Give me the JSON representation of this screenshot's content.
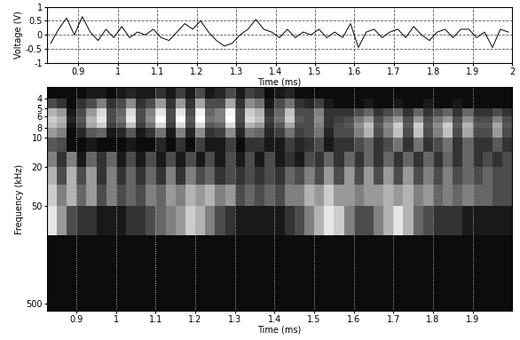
{
  "chart_data": [
    {
      "type": "line",
      "xlabel": "Time (ms)",
      "ylabel": "Voltage (V)",
      "color": "#000000",
      "grid": true,
      "xlim": [
        0.82,
        2
      ],
      "xticks": [
        0.9,
        1,
        1.1,
        1.2,
        1.3,
        1.4,
        1.5,
        1.6,
        1.7,
        1.8,
        1.9,
        2
      ],
      "ylim": [
        -1,
        1
      ],
      "yticks": [
        -1,
        -0.5,
        0,
        0.5,
        1
      ],
      "x": [
        0.83,
        0.85,
        0.87,
        0.89,
        0.91,
        0.93,
        0.95,
        0.97,
        0.99,
        1.01,
        1.03,
        1.05,
        1.07,
        1.09,
        1.11,
        1.13,
        1.15,
        1.17,
        1.19,
        1.21,
        1.23,
        1.25,
        1.27,
        1.29,
        1.31,
        1.33,
        1.35,
        1.37,
        1.39,
        1.41,
        1.43,
        1.45,
        1.47,
        1.49,
        1.51,
        1.53,
        1.55,
        1.57,
        1.59,
        1.61,
        1.63,
        1.65,
        1.67,
        1.69,
        1.71,
        1.73,
        1.75,
        1.77,
        1.79,
        1.81,
        1.83,
        1.85,
        1.87,
        1.89,
        1.91,
        1.93,
        1.95,
        1.97,
        1.99
      ],
      "values": [
        -0.3,
        0.2,
        0.6,
        0.0,
        0.65,
        0.1,
        -0.2,
        0.2,
        -0.1,
        0.3,
        -0.1,
        0.1,
        0.0,
        0.2,
        -0.1,
        -0.2,
        0.1,
        0.4,
        0.2,
        0.5,
        0.1,
        -0.2,
        -0.4,
        -0.3,
        0.0,
        0.2,
        0.55,
        0.2,
        0.1,
        -0.1,
        0.2,
        -0.1,
        0.1,
        0.0,
        0.2,
        -0.1,
        0.1,
        -0.1,
        0.4,
        -0.45,
        0.1,
        0.2,
        -0.1,
        0.1,
        0.2,
        -0.1,
        0.3,
        0.0,
        -0.2,
        0.1,
        0.2,
        -0.1,
        0.2,
        0.2,
        -0.1,
        0.1,
        -0.45,
        0.2,
        0.1
      ]
    },
    {
      "type": "heatmap",
      "xlabel": "Time (ms)",
      "ylabel": "Frequency (kHz)",
      "log": "y",
      "grid": true,
      "xlim": [
        0.825,
        2
      ],
      "xticks": [
        0.9,
        1,
        1.1,
        1.2,
        1.3,
        1.4,
        1.5,
        1.6,
        1.7,
        1.8,
        1.9
      ],
      "ylim": [
        600,
        3
      ],
      "yticks": [
        4,
        5,
        6,
        8,
        10,
        20,
        50,
        500
      ],
      "x": [
        0.825,
        0.85,
        0.875,
        0.9,
        0.925,
        0.95,
        0.975,
        1.0,
        1.025,
        1.05,
        1.075,
        1.1,
        1.125,
        1.15,
        1.175,
        1.2,
        1.225,
        1.25,
        1.275,
        1.3,
        1.325,
        1.35,
        1.375,
        1.4,
        1.425,
        1.45,
        1.475,
        1.5,
        1.525,
        1.55,
        1.575,
        1.6,
        1.625,
        1.65,
        1.675,
        1.7,
        1.725,
        1.75,
        1.775,
        1.8,
        1.825,
        1.85,
        1.875,
        1.9,
        1.925,
        1.95,
        1.975,
        2.0
      ],
      "y": [
        3,
        4,
        5,
        6,
        7,
        8,
        10,
        14,
        20,
        30,
        50,
        100,
        600
      ],
      "value_range": [
        0,
        1
      ],
      "cells": [
        [
          0.05,
          0.05,
          0.05,
          0.05,
          0.1,
          0.1,
          0.05,
          0.1,
          0.15,
          0.1,
          0.1,
          0.2,
          0.1,
          0.25,
          0.1,
          0.3,
          0.1,
          0.15,
          0.3,
          0.1,
          0.25,
          0.2,
          0.05,
          0.1,
          0.15,
          0.05,
          0.05,
          0.05,
          0.05,
          0.05,
          0.05,
          0.05,
          0.05,
          0.05,
          0.05,
          0.05,
          0.05,
          0.05,
          0.05,
          0.05,
          0.05,
          0.05,
          0.05,
          0.05,
          0.05,
          0.05,
          0.05
        ],
        [
          0.3,
          0.2,
          0.05,
          0.2,
          0.3,
          0.5,
          0.2,
          0.3,
          0.55,
          0.2,
          0.3,
          0.6,
          0.2,
          0.6,
          0.2,
          0.65,
          0.3,
          0.3,
          0.65,
          0.2,
          0.55,
          0.45,
          0.1,
          0.3,
          0.45,
          0.2,
          0.15,
          0.25,
          0.1,
          0.05,
          0.05,
          0.05,
          0.1,
          0.05,
          0.05,
          0.1,
          0.05,
          0.05,
          0.1,
          0.05,
          0.05,
          0.1,
          0.05,
          0.05,
          0.05,
          0.05,
          0.05
        ],
        [
          0.7,
          0.6,
          0.1,
          0.3,
          0.6,
          0.85,
          0.3,
          0.4,
          0.85,
          0.3,
          0.5,
          0.9,
          0.3,
          0.9,
          0.3,
          0.95,
          0.4,
          0.5,
          0.95,
          0.3,
          0.8,
          0.7,
          0.2,
          0.4,
          0.75,
          0.3,
          0.3,
          0.5,
          0.2,
          0.2,
          0.2,
          0.3,
          0.4,
          0.2,
          0.3,
          0.4,
          0.2,
          0.4,
          0.2,
          0.3,
          0.4,
          0.2,
          0.4,
          0.2,
          0.2,
          0.3,
          0.2
        ],
        [
          0.8,
          0.7,
          0.15,
          0.35,
          0.7,
          0.9,
          0.3,
          0.45,
          0.9,
          0.3,
          0.55,
          1.0,
          0.3,
          1.0,
          0.35,
          1.0,
          0.45,
          0.5,
          1.0,
          0.3,
          0.85,
          0.75,
          0.25,
          0.45,
          0.8,
          0.35,
          0.3,
          0.55,
          0.2,
          0.25,
          0.3,
          0.45,
          0.6,
          0.3,
          0.45,
          0.6,
          0.3,
          0.6,
          0.3,
          0.45,
          0.6,
          0.3,
          0.55,
          0.3,
          0.3,
          0.5,
          0.3
        ],
        [
          0.75,
          0.65,
          0.1,
          0.3,
          0.65,
          0.8,
          0.25,
          0.35,
          0.75,
          0.25,
          0.45,
          0.85,
          0.25,
          0.85,
          0.3,
          0.85,
          0.35,
          0.4,
          0.85,
          0.25,
          0.7,
          0.6,
          0.2,
          0.35,
          0.65,
          0.3,
          0.3,
          0.5,
          0.2,
          0.3,
          0.35,
          0.55,
          0.75,
          0.35,
          0.55,
          0.8,
          0.35,
          0.8,
          0.35,
          0.55,
          0.8,
          0.35,
          0.7,
          0.35,
          0.35,
          0.65,
          0.35
        ],
        [
          0.6,
          0.5,
          0.05,
          0.15,
          0.35,
          0.4,
          0.1,
          0.15,
          0.35,
          0.1,
          0.2,
          0.45,
          0.1,
          0.5,
          0.15,
          0.55,
          0.2,
          0.25,
          0.55,
          0.15,
          0.45,
          0.4,
          0.15,
          0.25,
          0.45,
          0.25,
          0.3,
          0.45,
          0.15,
          0.3,
          0.3,
          0.5,
          0.7,
          0.3,
          0.5,
          0.75,
          0.3,
          0.75,
          0.3,
          0.5,
          0.75,
          0.3,
          0.65,
          0.3,
          0.3,
          0.6,
          0.3
        ],
        [
          0.35,
          0.3,
          0.05,
          0.05,
          0.1,
          0.05,
          0.05,
          0.05,
          0.1,
          0.05,
          0.05,
          0.15,
          0.05,
          0.2,
          0.05,
          0.25,
          0.1,
          0.1,
          0.25,
          0.05,
          0.2,
          0.2,
          0.1,
          0.1,
          0.25,
          0.15,
          0.2,
          0.3,
          0.1,
          0.2,
          0.2,
          0.3,
          0.4,
          0.2,
          0.3,
          0.45,
          0.2,
          0.45,
          0.2,
          0.3,
          0.45,
          0.2,
          0.4,
          0.2,
          0.2,
          0.35,
          0.2
        ],
        [
          0.5,
          0.2,
          0.5,
          0.1,
          0.4,
          0.2,
          0.4,
          0.1,
          0.3,
          0.1,
          0.3,
          0.1,
          0.3,
          0.1,
          0.3,
          0.1,
          0.3,
          0.1,
          0.3,
          0.1,
          0.3,
          0.1,
          0.3,
          0.1,
          0.2,
          0.1,
          0.3,
          0.2,
          0.4,
          0.2,
          0.4,
          0.2,
          0.4,
          0.2,
          0.4,
          0.2,
          0.4,
          0.2,
          0.4,
          0.2,
          0.4,
          0.2,
          0.4,
          0.2,
          0.3,
          0.2,
          0.3
        ],
        [
          0.7,
          0.3,
          0.7,
          0.3,
          0.6,
          0.2,
          0.5,
          0.2,
          0.4,
          0.2,
          0.4,
          0.2,
          0.5,
          0.2,
          0.5,
          0.3,
          0.4,
          0.2,
          0.3,
          0.2,
          0.3,
          0.2,
          0.3,
          0.2,
          0.4,
          0.3,
          0.5,
          0.3,
          0.6,
          0.3,
          0.6,
          0.3,
          0.6,
          0.3,
          0.6,
          0.3,
          0.6,
          0.3,
          0.5,
          0.3,
          0.5,
          0.3,
          0.4,
          0.3,
          0.4,
          0.3,
          0.3
        ],
        [
          0.8,
          0.5,
          0.7,
          0.4,
          0.6,
          0.3,
          0.5,
          0.3,
          0.4,
          0.3,
          0.5,
          0.4,
          0.6,
          0.5,
          0.7,
          0.6,
          0.7,
          0.5,
          0.6,
          0.3,
          0.4,
          0.3,
          0.4,
          0.3,
          0.5,
          0.5,
          0.7,
          0.6,
          0.8,
          0.6,
          0.6,
          0.5,
          0.6,
          0.6,
          0.7,
          0.6,
          0.7,
          0.5,
          0.6,
          0.4,
          0.5,
          0.4,
          0.5,
          0.4,
          0.4,
          0.3,
          0.3
        ],
        [
          0.9,
          0.6,
          0.3,
          0.2,
          0.2,
          0.1,
          0.1,
          0.1,
          0.2,
          0.2,
          0.3,
          0.4,
          0.5,
          0.6,
          0.8,
          0.7,
          0.5,
          0.3,
          0.2,
          0.1,
          0.1,
          0.1,
          0.1,
          0.1,
          0.2,
          0.3,
          0.5,
          0.7,
          0.9,
          0.8,
          0.5,
          0.3,
          0.3,
          0.5,
          0.7,
          0.9,
          0.7,
          0.4,
          0.3,
          0.2,
          0.2,
          0.2,
          0.1,
          0.1,
          0.1,
          0.1,
          0.1
        ],
        [
          0.05,
          0.05,
          0.05,
          0.05,
          0.05,
          0.05,
          0.05,
          0.05,
          0.05,
          0.05,
          0.05,
          0.05,
          0.05,
          0.05,
          0.05,
          0.05,
          0.05,
          0.05,
          0.05,
          0.05,
          0.05,
          0.05,
          0.05,
          0.05,
          0.05,
          0.05,
          0.05,
          0.05,
          0.05,
          0.05,
          0.05,
          0.05,
          0.05,
          0.05,
          0.05,
          0.05,
          0.05,
          0.05,
          0.05,
          0.05,
          0.05,
          0.05,
          0.05,
          0.05,
          0.05,
          0.05,
          0.05
        ]
      ]
    }
  ]
}
